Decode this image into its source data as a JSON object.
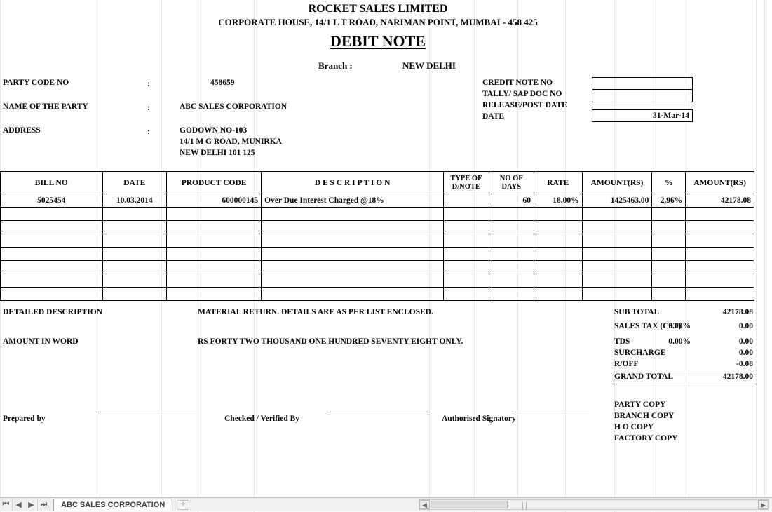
{
  "header": {
    "company": "ROCKET SALES LIMITED",
    "address": "CORPORATE HOUSE, 14/1 L T ROAD, NARIMAN POINT, MUMBAI - 458 425",
    "title": "DEBIT NOTE",
    "branch_label": "Branch :",
    "branch_value": "NEW DELHI"
  },
  "party": {
    "code_label": "PARTY CODE NO",
    "code_value": "458659",
    "name_label": "NAME OF THE PARTY",
    "name_value": "ABC SALES CORPORATION",
    "address_label": "ADDRESS",
    "address_line1": "GODOWN NO-103",
    "address_line2": "14/1 M G ROAD, MUNIRKA",
    "address_line3": "NEW DELHI 101 125"
  },
  "credit": {
    "note_no_label": "CREDIT NOTE NO",
    "tally_label": "TALLY/ SAP DOC NO",
    "release_label": "RELEASE/POST DATE",
    "date_label": "DATE",
    "date_value": "31-Mar-14"
  },
  "table": {
    "headers": [
      "BILL NO",
      "DATE",
      "PRODUCT CODE",
      "D E S C R I P T I O N",
      "TYPE OF D/NOTE",
      "NO OF DAYS",
      "RATE",
      "AMOUNT(RS)",
      "%",
      "AMOUNT(RS)"
    ],
    "row": {
      "bill_no": "5025454",
      "date": "10.03.2014",
      "product_code": "600000145",
      "description": "Over Due Interest Charged @18%",
      "type": "",
      "days": "60",
      "rate": "18.00%",
      "amount_rs": "1425463.00",
      "pct": "2.96%",
      "amount2": "42178.08"
    },
    "empty_rows": 7,
    "col_align": [
      "center",
      "center",
      "right",
      "left",
      "center",
      "right",
      "right",
      "right",
      "right",
      "right"
    ]
  },
  "desc": {
    "label": "DETAILED DESCRIPTION",
    "value": "MATERIAL RETURN. DETAILS ARE AS PER LIST ENCLOSED."
  },
  "amount_word": {
    "label": "AMOUNT IN WORD",
    "value": "RS FORTY TWO THOUSAND ONE HUNDRED SEVENTY EIGHT ONLY."
  },
  "totals": {
    "sub_total": {
      "label": "SUB TOTAL",
      "amt": "42178.08"
    },
    "sales_tax": {
      "label": "SALES TAX (CST)",
      "pct": "0.00%",
      "amt": "0.00"
    },
    "tds": {
      "label": "TDS",
      "pct": "0.00%",
      "amt": "0.00"
    },
    "surcharge": {
      "label": "SURCHARGE",
      "amt": "0.00"
    },
    "roff": {
      "label": "R/OFF",
      "amt": "-0.08"
    },
    "grand": {
      "label": "GRAND TOTAL",
      "amt": "42178.00"
    }
  },
  "signatures": {
    "prepared": "Prepared by",
    "checked": "Checked  / Verified By",
    "auth": "Authorised Signatory"
  },
  "copies": [
    "PARTY COPY",
    "BRANCH COPY",
    "H O COPY",
    "FACTORY COPY"
  ],
  "tab": {
    "name": "ABC SALES CORPORATION"
  },
  "style": {
    "grid_color": "#e8e8e8",
    "border_color": "#000000",
    "background": "#ffffff",
    "font_family": "Times New Roman",
    "title_fontsize": 22,
    "company_fontsize": 16,
    "body_fontsize": 12,
    "cell_fontsize": 11.5
  }
}
